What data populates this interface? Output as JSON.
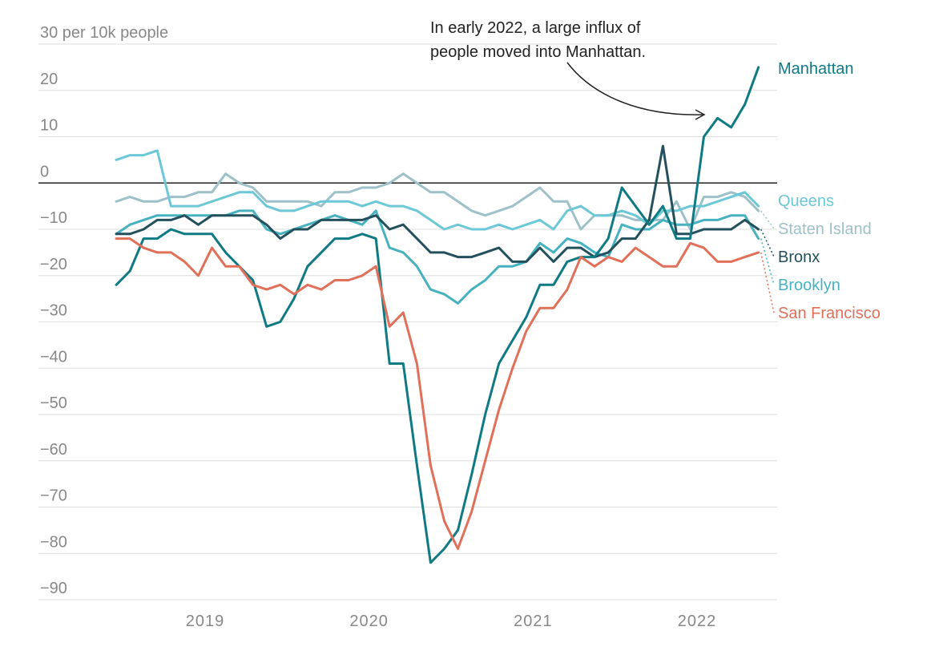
{
  "chart_data": {
    "type": "line",
    "ylabel_unit": "per 10k people",
    "ylim": [
      -90,
      30
    ],
    "yticks": [
      {
        "value": 30,
        "label": "30 per 10k people"
      },
      {
        "value": 20,
        "label": "20"
      },
      {
        "value": 10,
        "label": "10"
      },
      {
        "value": 0,
        "label": "0"
      },
      {
        "value": -10,
        "label": "−10"
      },
      {
        "value": -20,
        "label": "−20"
      },
      {
        "value": -30,
        "label": "−30"
      },
      {
        "value": -40,
        "label": "−40"
      },
      {
        "value": -50,
        "label": "−50"
      },
      {
        "value": -60,
        "label": "−60"
      },
      {
        "value": -70,
        "label": "−70"
      },
      {
        "value": -80,
        "label": "−80"
      },
      {
        "value": -90,
        "label": "−90"
      }
    ],
    "xticks": [
      {
        "value": 2019.0,
        "label": "2019"
      },
      {
        "value": 2020.0,
        "label": "2020"
      },
      {
        "value": 2021.0,
        "label": "2021"
      },
      {
        "value": 2022.0,
        "label": "2022"
      }
    ],
    "xrange": [
      2018.5,
      2022.5
    ],
    "x_start": 2018.4583,
    "x_step": 0.0833333,
    "annotation": {
      "lines": [
        "In early 2022, a large influx of",
        "people moved into Manhattan."
      ],
      "points_to": {
        "x": 2022.0833,
        "y": 15
      }
    },
    "series": [
      {
        "name": "Staten Island",
        "color": "#9ec0c9",
        "values": [
          -4,
          -3,
          -4,
          -4,
          -3,
          -3,
          -2,
          -2,
          2,
          0,
          -1,
          -4,
          -4,
          -4,
          -4,
          -5,
          -2,
          -2,
          -1,
          -1,
          0,
          2,
          0,
          -2,
          -2,
          -4,
          -6,
          -7,
          -6,
          -5,
          -3,
          -1,
          -4,
          -4,
          -10,
          -7,
          -7,
          -7,
          -8,
          -8,
          -8,
          -4,
          -10,
          -3,
          -3,
          -2,
          -3,
          -6
        ]
      },
      {
        "name": "Queens",
        "color": "#6cc8d6",
        "values": [
          5,
          6,
          6,
          7,
          -5,
          -5,
          -5,
          -4,
          -3,
          -2,
          -2,
          -5,
          -6,
          -6,
          -5,
          -4,
          -4,
          -4,
          -5,
          -4,
          -5,
          -5,
          -6,
          -8,
          -10,
          -9,
          -10,
          -10,
          -9,
          -10,
          -9,
          -8,
          -10,
          -6,
          -5,
          -7,
          -7,
          -6,
          -7,
          -9,
          -6,
          -6,
          -5,
          -5,
          -4,
          -3,
          -2,
          -5
        ]
      },
      {
        "name": "Brooklyn",
        "color": "#46b2c0",
        "values": [
          -11,
          -9,
          -8,
          -7,
          -7,
          -7,
          -7,
          -7,
          -7,
          -6,
          -6,
          -10,
          -11,
          -10,
          -9,
          -8,
          -7,
          -8,
          -9,
          -6,
          -14,
          -15,
          -18,
          -23,
          -24,
          -26,
          -23,
          -21,
          -18,
          -18,
          -17,
          -13,
          -15,
          -12,
          -13,
          -15,
          -16,
          -9,
          -10,
          -10,
          -8,
          -9,
          -9,
          -8,
          -8,
          -7,
          -7,
          -12
        ]
      },
      {
        "name": "Bronx",
        "color": "#23505c",
        "values": [
          -11,
          -11,
          -10,
          -8,
          -8,
          -7,
          -9,
          -7,
          -7,
          -7,
          -7,
          -9,
          -12,
          -10,
          -10,
          -8,
          -8,
          -8,
          -8,
          -7,
          -10,
          -9,
          -12,
          -15,
          -15,
          -16,
          -16,
          -15,
          -14,
          -17,
          -17,
          -14,
          -17,
          -14,
          -14,
          -16,
          -15,
          -12,
          -12,
          -8,
          8,
          -11,
          -11,
          -10,
          -10,
          -10,
          -8,
          -10
        ]
      },
      {
        "name": "Manhattan",
        "color": "#0f7a84",
        "values": [
          -22,
          -19,
          -12,
          -12,
          -10,
          -11,
          -11,
          -11,
          -15,
          -18,
          -21,
          -31,
          -30,
          -25,
          -18,
          -15,
          -12,
          -12,
          -11,
          -12,
          -39,
          -39,
          -61,
          -82,
          -79,
          -75,
          -63,
          -50,
          -39,
          -34,
          -29,
          -22,
          -22,
          -17,
          -16,
          -16,
          -12,
          -1,
          -5,
          -9,
          -5,
          -12,
          -12,
          10,
          14,
          12,
          17,
          25
        ]
      },
      {
        "name": "San Francisco",
        "color": "#e0705a",
        "values": [
          -12,
          -12,
          -14,
          -15,
          -15,
          -17,
          -20,
          -14,
          -18,
          -18,
          -22,
          -23,
          -22,
          -24,
          -22,
          -23,
          -21,
          -21,
          -20,
          -18,
          -31,
          -28,
          -39,
          -61,
          -73,
          -79,
          -71,
          -60,
          -49,
          -40,
          -32,
          -27,
          -27,
          -23,
          -16,
          -18,
          -16,
          -17,
          -14,
          -16,
          -18,
          -18,
          -13,
          -14,
          -17,
          -17,
          -16,
          -15
        ]
      }
    ]
  }
}
